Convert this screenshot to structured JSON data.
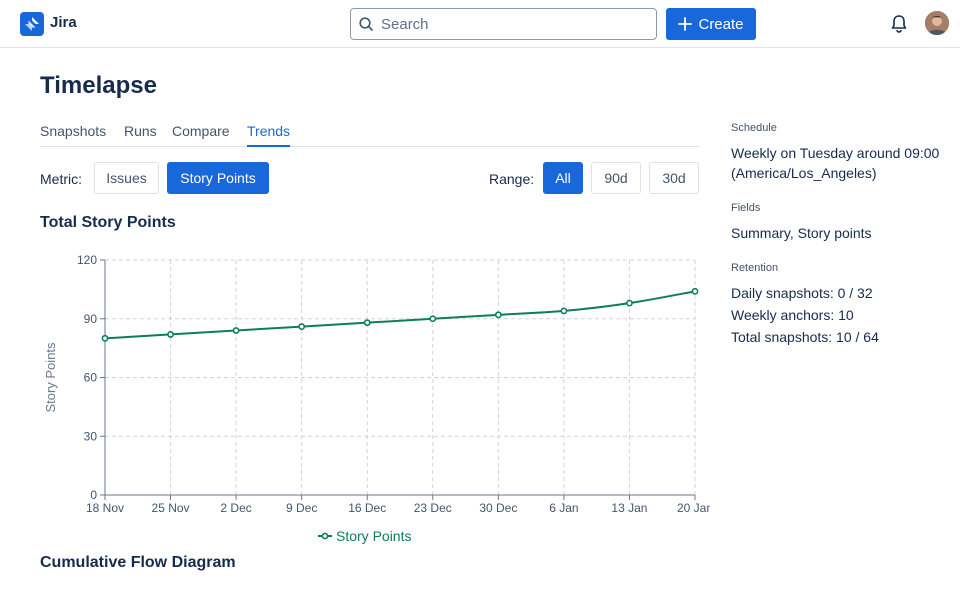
{
  "app": {
    "name": "Jira"
  },
  "search": {
    "placeholder": "Search"
  },
  "header": {
    "create_label": "Create"
  },
  "page": {
    "title": "Timelapse"
  },
  "tabs": [
    {
      "label": "Snapshots",
      "active": false
    },
    {
      "label": "Runs",
      "active": false
    },
    {
      "label": "Compare",
      "active": false
    },
    {
      "label": "Trends",
      "active": true
    }
  ],
  "controls": {
    "metric_label": "Metric:",
    "metric_options": [
      {
        "label": "Issues",
        "selected": false
      },
      {
        "label": "Story Points",
        "selected": true
      }
    ],
    "range_label": "Range:",
    "range_options": [
      {
        "label": "All",
        "selected": true
      },
      {
        "label": "90d",
        "selected": false
      },
      {
        "label": "30d",
        "selected": false
      }
    ]
  },
  "chart_data": {
    "type": "line",
    "title": "Total Story Points",
    "ylabel": "Story Points",
    "xlabel": "",
    "x": [
      "18 Nov",
      "25 Nov",
      "2 Dec",
      "9 Dec",
      "16 Dec",
      "23 Dec",
      "30 Dec",
      "6 Jan",
      "13 Jan",
      "20 Jan"
    ],
    "series": [
      {
        "name": "Story Points",
        "values": [
          80,
          82,
          84,
          86,
          88,
          90,
          92,
          94,
          98,
          104
        ],
        "color": "#0b7e5a"
      }
    ],
    "ylim": [
      0,
      120
    ],
    "yticks": [
      0,
      30,
      60,
      90,
      120
    ],
    "grid": true,
    "legend": "bottom"
  },
  "sections": {
    "cfd_title": "Cumulative Flow Diagram"
  },
  "sidebar": {
    "schedule_heading": "Schedule",
    "schedule_line1": "Weekly on Tuesday around 09:00",
    "schedule_line2": "(America/Los_Angeles)",
    "fields_heading": "Fields",
    "fields_value": "Summary, Story points",
    "retention_heading": "Retention",
    "retention_daily": "Daily snapshots: 0 / 32",
    "retention_weekly": "Weekly anchors: 10",
    "retention_total": "Total snapshots: 10 / 64"
  },
  "colors": {
    "accent": "#1868db",
    "series": "#0b7e5a"
  }
}
